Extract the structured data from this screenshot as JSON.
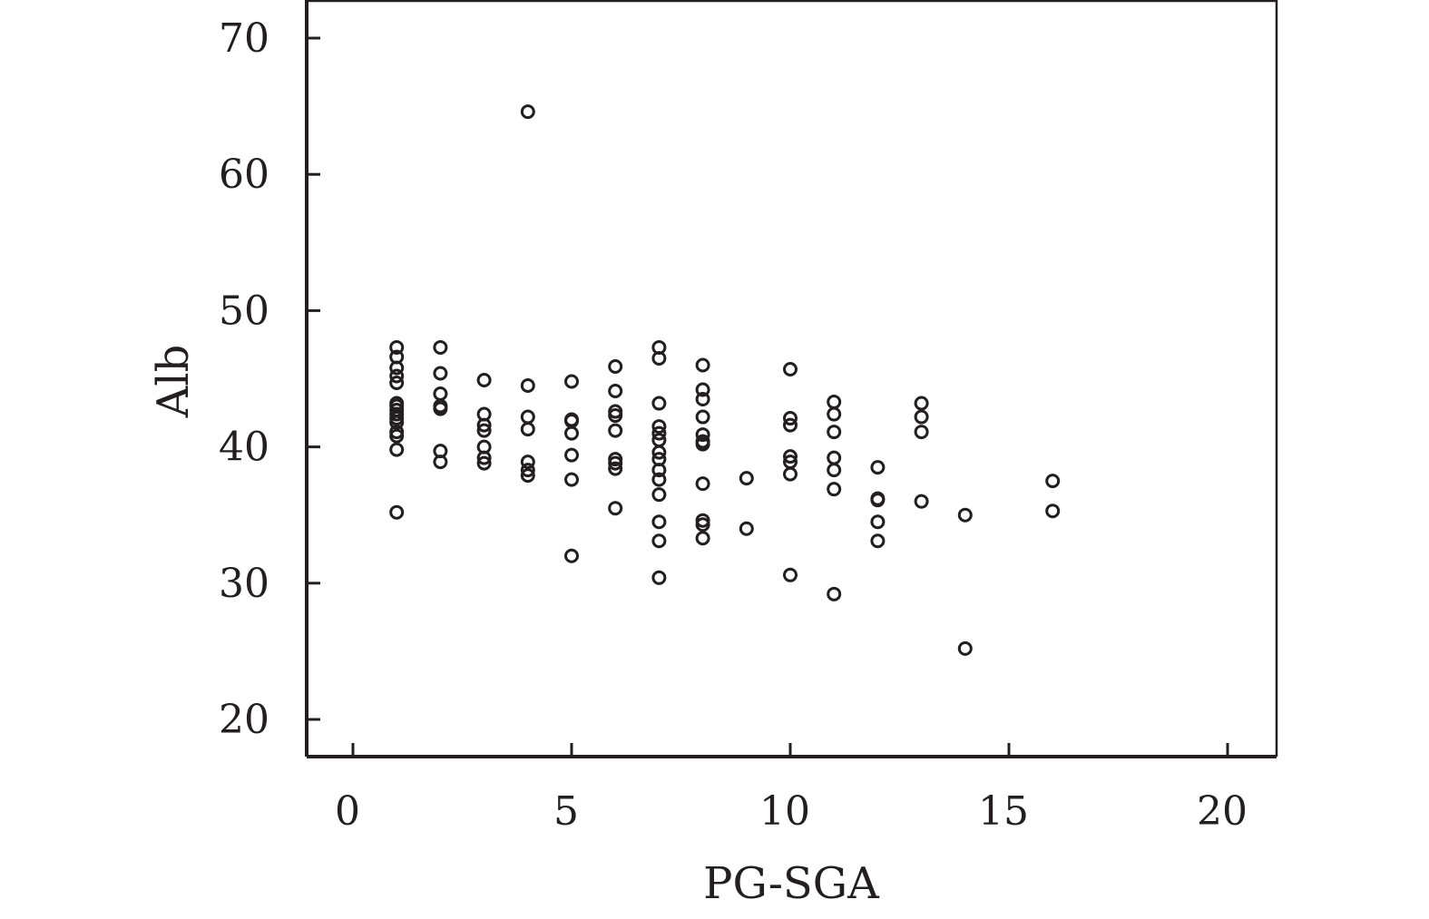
{
  "chart_data": {
    "type": "scatter",
    "title": "",
    "xlabel": "PG-SGA",
    "ylabel": "Alb",
    "xlim": [
      -1,
      21.2
    ],
    "ylim": [
      17.2,
      72.8
    ],
    "xticks": [
      0,
      5,
      10,
      15,
      20
    ],
    "yticks": [
      20,
      30,
      40,
      50,
      60,
      70
    ],
    "xtick_labels": [
      "0",
      "5",
      "10",
      "15",
      "20"
    ],
    "ytick_labels": [
      "20",
      "30",
      "40",
      "50",
      "60",
      "70"
    ],
    "grid": false,
    "marker": "open-circle",
    "color": "#231f20",
    "points": [
      {
        "x": 1,
        "y": 47.3
      },
      {
        "x": 1,
        "y": 46.6
      },
      {
        "x": 1,
        "y": 45.8
      },
      {
        "x": 1,
        "y": 45.2
      },
      {
        "x": 1,
        "y": 44.7
      },
      {
        "x": 1,
        "y": 43.2
      },
      {
        "x": 1,
        "y": 43.0
      },
      {
        "x": 1,
        "y": 42.7
      },
      {
        "x": 1,
        "y": 42.4
      },
      {
        "x": 1,
        "y": 42.1
      },
      {
        "x": 1,
        "y": 41.8
      },
      {
        "x": 1,
        "y": 41.1
      },
      {
        "x": 1,
        "y": 40.8
      },
      {
        "x": 1,
        "y": 39.8
      },
      {
        "x": 1,
        "y": 35.2
      },
      {
        "x": 2,
        "y": 47.3
      },
      {
        "x": 2,
        "y": 45.4
      },
      {
        "x": 2,
        "y": 43.9
      },
      {
        "x": 2,
        "y": 43.0
      },
      {
        "x": 2,
        "y": 42.8
      },
      {
        "x": 2,
        "y": 39.7
      },
      {
        "x": 2,
        "y": 38.9
      },
      {
        "x": 3,
        "y": 44.9
      },
      {
        "x": 3,
        "y": 42.4
      },
      {
        "x": 3,
        "y": 41.6
      },
      {
        "x": 3,
        "y": 41.2
      },
      {
        "x": 3,
        "y": 40.0
      },
      {
        "x": 3,
        "y": 39.2
      },
      {
        "x": 3,
        "y": 38.8
      },
      {
        "x": 4,
        "y": 64.6
      },
      {
        "x": 4,
        "y": 44.5
      },
      {
        "x": 4,
        "y": 42.2
      },
      {
        "x": 4,
        "y": 41.3
      },
      {
        "x": 4,
        "y": 38.9
      },
      {
        "x": 4,
        "y": 38.3
      },
      {
        "x": 4,
        "y": 37.9
      },
      {
        "x": 5,
        "y": 44.8
      },
      {
        "x": 5,
        "y": 42.0
      },
      {
        "x": 5,
        "y": 41.9
      },
      {
        "x": 5,
        "y": 41.0
      },
      {
        "x": 5,
        "y": 39.4
      },
      {
        "x": 5,
        "y": 37.6
      },
      {
        "x": 5,
        "y": 32.0
      },
      {
        "x": 6,
        "y": 45.9
      },
      {
        "x": 6,
        "y": 44.1
      },
      {
        "x": 6,
        "y": 42.6
      },
      {
        "x": 6,
        "y": 42.3
      },
      {
        "x": 6,
        "y": 41.2
      },
      {
        "x": 6,
        "y": 39.1
      },
      {
        "x": 6,
        "y": 38.8
      },
      {
        "x": 6,
        "y": 38.4
      },
      {
        "x": 6,
        "y": 35.5
      },
      {
        "x": 7,
        "y": 47.3
      },
      {
        "x": 7,
        "y": 46.5
      },
      {
        "x": 7,
        "y": 43.2
      },
      {
        "x": 7,
        "y": 41.5
      },
      {
        "x": 7,
        "y": 41.0
      },
      {
        "x": 7,
        "y": 40.5
      },
      {
        "x": 7,
        "y": 39.6
      },
      {
        "x": 7,
        "y": 39.1
      },
      {
        "x": 7,
        "y": 38.3
      },
      {
        "x": 7,
        "y": 37.6
      },
      {
        "x": 7,
        "y": 36.5
      },
      {
        "x": 7,
        "y": 34.5
      },
      {
        "x": 7,
        "y": 33.1
      },
      {
        "x": 7,
        "y": 30.4
      },
      {
        "x": 8,
        "y": 46.0
      },
      {
        "x": 8,
        "y": 44.2
      },
      {
        "x": 8,
        "y": 43.5
      },
      {
        "x": 8,
        "y": 42.2
      },
      {
        "x": 8,
        "y": 40.9
      },
      {
        "x": 8,
        "y": 40.4
      },
      {
        "x": 8,
        "y": 40.2
      },
      {
        "x": 8,
        "y": 37.3
      },
      {
        "x": 8,
        "y": 34.6
      },
      {
        "x": 8,
        "y": 34.3
      },
      {
        "x": 8,
        "y": 33.3
      },
      {
        "x": 9,
        "y": 37.7
      },
      {
        "x": 9,
        "y": 34.0
      },
      {
        "x": 10,
        "y": 45.7
      },
      {
        "x": 10,
        "y": 42.1
      },
      {
        "x": 10,
        "y": 41.6
      },
      {
        "x": 10,
        "y": 39.3
      },
      {
        "x": 10,
        "y": 38.9
      },
      {
        "x": 10,
        "y": 38.0
      },
      {
        "x": 10,
        "y": 30.6
      },
      {
        "x": 11,
        "y": 43.3
      },
      {
        "x": 11,
        "y": 42.4
      },
      {
        "x": 11,
        "y": 41.1
      },
      {
        "x": 11,
        "y": 39.2
      },
      {
        "x": 11,
        "y": 38.3
      },
      {
        "x": 11,
        "y": 36.9
      },
      {
        "x": 11,
        "y": 29.2
      },
      {
        "x": 12,
        "y": 38.5
      },
      {
        "x": 12,
        "y": 36.2
      },
      {
        "x": 12,
        "y": 36.1
      },
      {
        "x": 12,
        "y": 34.5
      },
      {
        "x": 12,
        "y": 33.1
      },
      {
        "x": 13,
        "y": 43.2
      },
      {
        "x": 13,
        "y": 42.2
      },
      {
        "x": 13,
        "y": 41.1
      },
      {
        "x": 13,
        "y": 36.0
      },
      {
        "x": 14,
        "y": 35.0
      },
      {
        "x": 14,
        "y": 25.2
      },
      {
        "x": 16,
        "y": 37.5
      },
      {
        "x": 16,
        "y": 35.3
      }
    ]
  }
}
